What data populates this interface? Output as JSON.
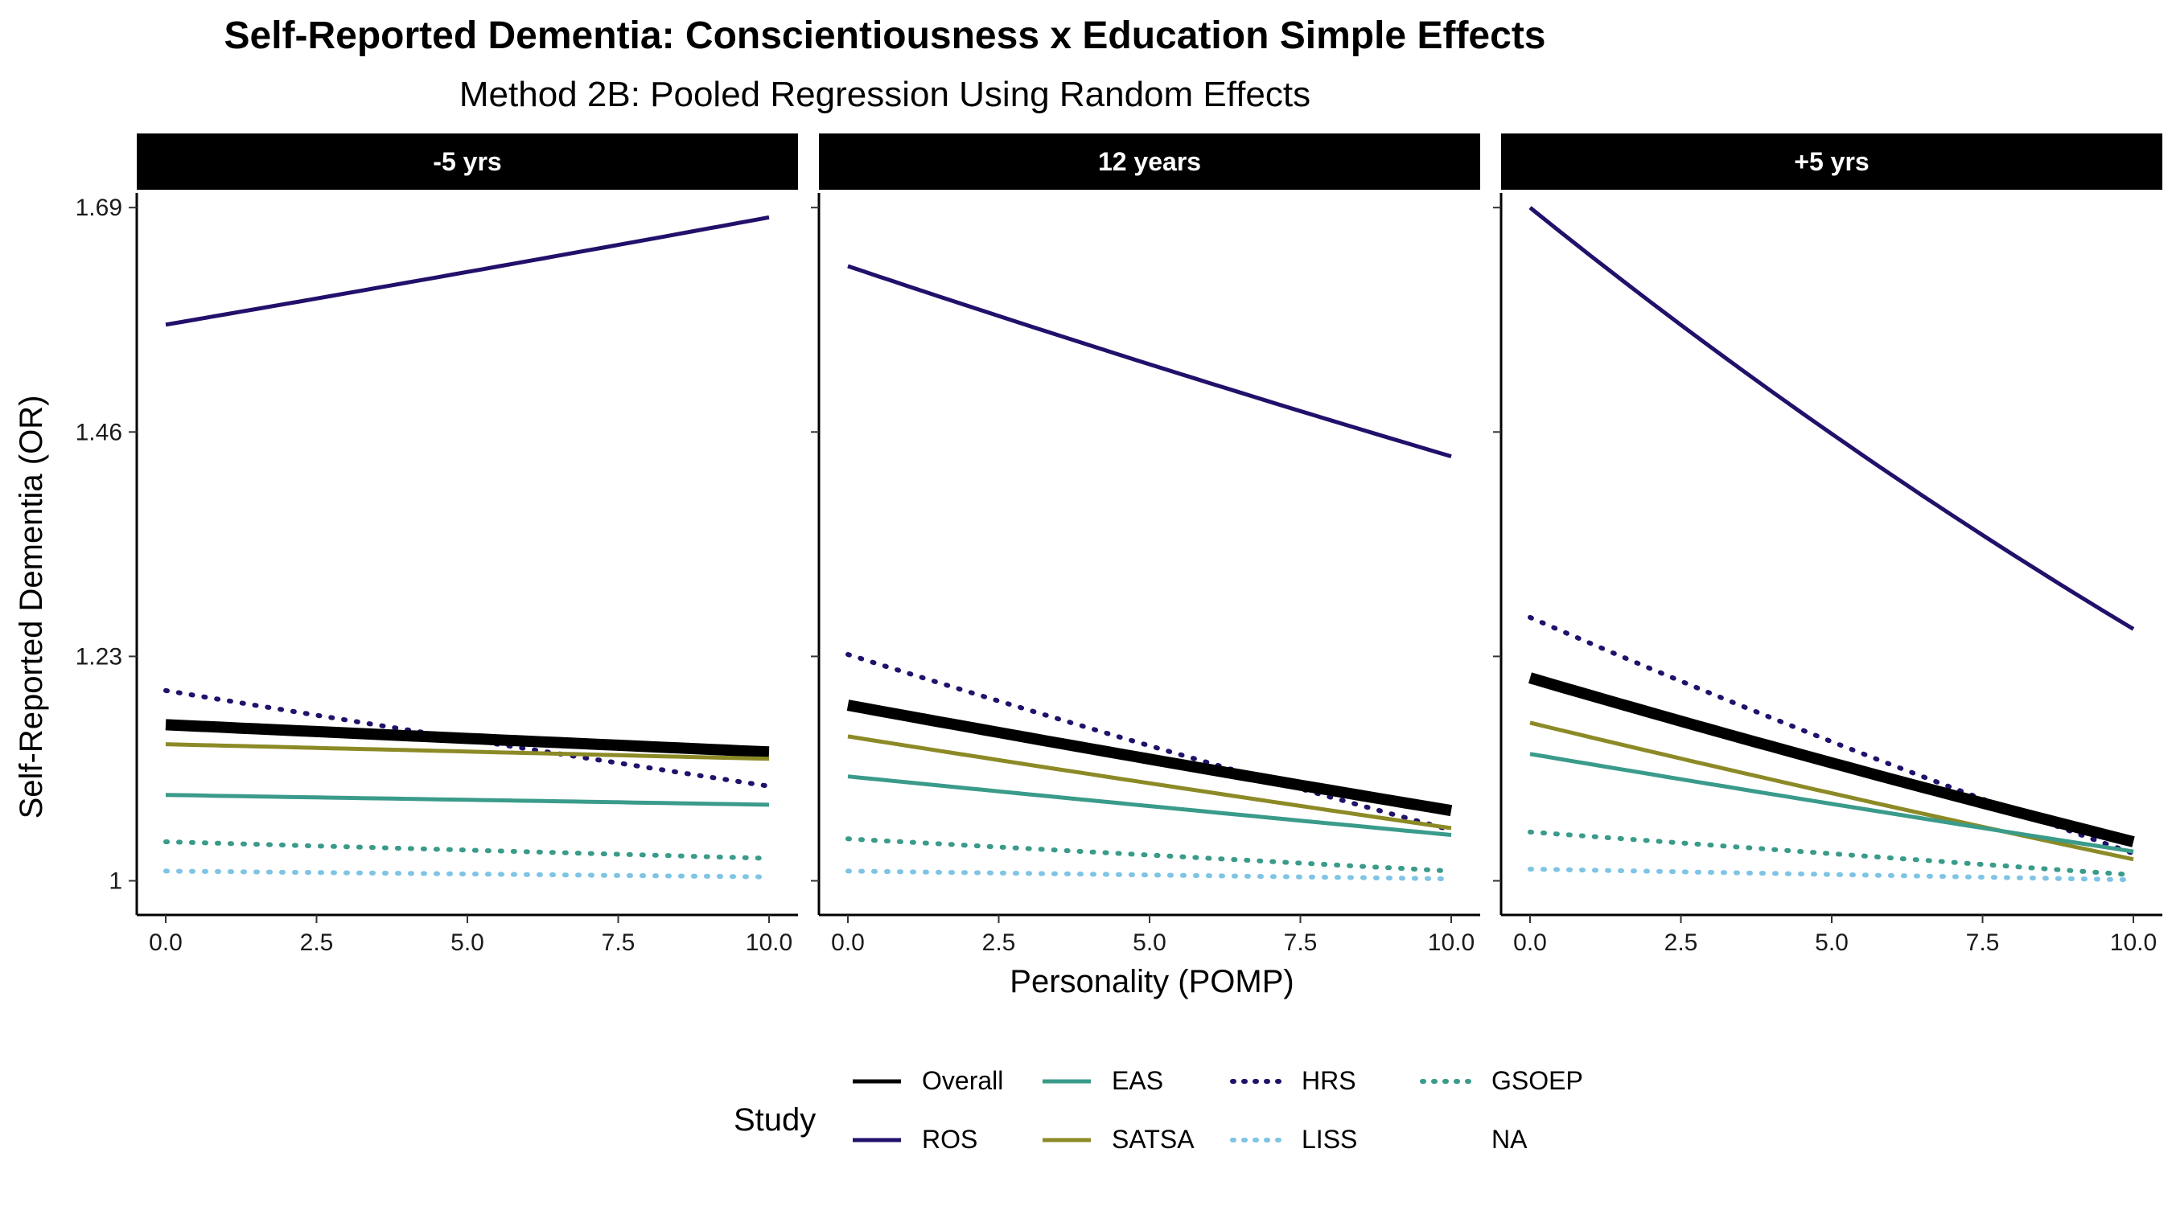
{
  "chart_data": {
    "type": "line",
    "title": "Self-Reported Dementia: Conscientiousness x Education Simple Effects",
    "subtitle": "Method 2B: Pooled Regression Using Random Effects",
    "xlabel": "Personality (POMP)",
    "ylabel": "Self-Reported Dementia (OR)",
    "xlim": [
      0,
      10
    ],
    "ylim": [
      0.965,
      1.705
    ],
    "x_ticks": [
      0,
      2.5,
      5,
      7.5,
      10
    ],
    "x_tick_labels": [
      "0.0",
      "2.5",
      "5.0",
      "7.5",
      "10.0"
    ],
    "y_ticks": [
      1,
      1.23,
      1.46,
      1.69
    ],
    "y_tick_labels": [
      "1",
      "1.23",
      "1.46",
      "1.69"
    ],
    "grid": false,
    "legend": {
      "title": "Study",
      "placement": "bottom",
      "entries": [
        {
          "label": "Overall",
          "color": "#000000",
          "dash": "solid"
        },
        {
          "label": "ROS",
          "color": "#22106b",
          "dash": "solid"
        },
        {
          "label": "EAS",
          "color": "#3a9b8a",
          "dash": "solid"
        },
        {
          "label": "SATSA",
          "color": "#8c8a26",
          "dash": "solid"
        },
        {
          "label": "HRS",
          "color": "#22106b",
          "dash": "dotted"
        },
        {
          "label": "LISS",
          "color": "#7fc4e4",
          "dash": "dotted"
        },
        {
          "label": "GSOEP",
          "color": "#3a9b8a",
          "dash": "dotted"
        },
        {
          "label": "NA",
          "color": "",
          "dash": "none"
        }
      ]
    },
    "x": [
      0,
      10
    ],
    "panels": [
      {
        "label": "-5 yrs",
        "series": [
          {
            "name": "ROS",
            "values": [
              1.57,
              1.68
            ]
          },
          {
            "name": "HRS",
            "values": [
              1.195,
              1.097
            ]
          },
          {
            "name": "Overall",
            "values": [
              1.16,
              1.132
            ]
          },
          {
            "name": "SATSA",
            "values": [
              1.14,
              1.125
            ]
          },
          {
            "name": "EAS",
            "values": [
              1.088,
              1.078
            ]
          },
          {
            "name": "GSOEP",
            "values": [
              1.04,
              1.023
            ]
          },
          {
            "name": "LISS",
            "values": [
              1.01,
              1.004
            ]
          }
        ]
      },
      {
        "label": "12 years",
        "series": [
          {
            "name": "ROS",
            "values": [
              1.63,
              1.435
            ]
          },
          {
            "name": "HRS",
            "values": [
              1.232,
              1.052
            ]
          },
          {
            "name": "Overall",
            "values": [
              1.18,
              1.072
            ]
          },
          {
            "name": "SATSA",
            "values": [
              1.148,
              1.054
            ]
          },
          {
            "name": "EAS",
            "values": [
              1.107,
              1.047
            ]
          },
          {
            "name": "GSOEP",
            "values": [
              1.043,
              1.01
            ]
          },
          {
            "name": "LISS",
            "values": [
              1.01,
              1.002
            ]
          }
        ]
      },
      {
        "label": "+5 yrs",
        "series": [
          {
            "name": "ROS",
            "values": [
              1.69,
              1.258
            ]
          },
          {
            "name": "HRS",
            "values": [
              1.27,
              1.028
            ]
          },
          {
            "name": "Overall",
            "values": [
              1.208,
              1.04
            ]
          },
          {
            "name": "SATSA",
            "values": [
              1.162,
              1.022
            ]
          },
          {
            "name": "EAS",
            "values": [
              1.13,
              1.03
            ]
          },
          {
            "name": "GSOEP",
            "values": [
              1.05,
              1.006
            ]
          },
          {
            "name": "LISS",
            "values": [
              1.012,
              1.001
            ]
          }
        ]
      }
    ]
  }
}
